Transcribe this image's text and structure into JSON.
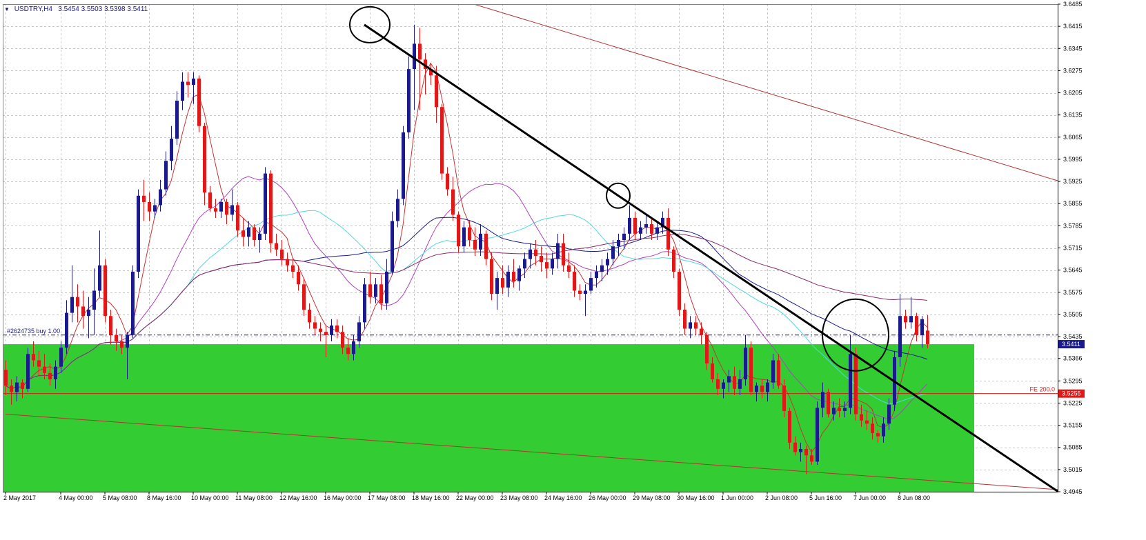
{
  "header": {
    "symbol": "USDTRY,H4",
    "ohlc": "3.5454 3.5503 3.5398 3.5411"
  },
  "colors": {
    "background": "#ffffff",
    "grid": "#c8c8c8",
    "bull_candle": "#1a1a8c",
    "bear_candle": "#e01818",
    "zone": "#33cc33",
    "trendline": "#000000",
    "ma_fast": "#c83232",
    "ma_mid": "#1a1a8c",
    "ma_cyan": "#4fd8e0",
    "ma_violet": "#b040c0",
    "ma_slow": "#8c2a6a",
    "channel": "#b43232",
    "price_label_bg": "#1a1a8c",
    "fe_label_bg": "#e01818"
  },
  "annotations": {
    "order_label": "#2624735 buy 1.00",
    "fe_label": "FE 200.0",
    "current_price": "3.5411",
    "fe_price": "3.5255"
  },
  "chart_data": {
    "type": "candlestick",
    "title": "USDTRY,H4",
    "xlabel": "",
    "ylabel": "",
    "ylim": [
      3.4945,
      3.6485
    ],
    "grid": true,
    "y_ticks": [
      "3.6485",
      "3.6415",
      "3.6345",
      "3.6275",
      "3.6205",
      "3.6135",
      "3.6065",
      "3.5995",
      "3.5925",
      "3.5855",
      "3.5785",
      "3.5715",
      "3.5645",
      "3.5575",
      "3.5505",
      "3.5435",
      "3.5366",
      "3.5295",
      "3.5225",
      "3.5155",
      "3.5085",
      "3.5015",
      "3.4945"
    ],
    "x_ticks": [
      {
        "label": "2 May 2017",
        "bar": 0
      },
      {
        "label": "4 May 00:00",
        "bar": 10
      },
      {
        "label": "5 May 08:00",
        "bar": 18
      },
      {
        "label": "8 May 16:00",
        "bar": 26
      },
      {
        "label": "10 May 00:00",
        "bar": 34
      },
      {
        "label": "11 May 08:00",
        "bar": 42
      },
      {
        "label": "12 May 16:00",
        "bar": 50
      },
      {
        "label": "16 May 00:00",
        "bar": 58
      },
      {
        "label": "17 May 08:00",
        "bar": 66
      },
      {
        "label": "18 May 16:00",
        "bar": 74
      },
      {
        "label": "22 May 00:00",
        "bar": 82
      },
      {
        "label": "23 May 08:00",
        "bar": 90
      },
      {
        "label": "24 May 16:00",
        "bar": 98
      },
      {
        "label": "26 May 00:00",
        "bar": 106
      },
      {
        "label": "29 May 08:00",
        "bar": 114
      },
      {
        "label": "30 May 16:00",
        "bar": 122
      },
      {
        "label": "1 Jun 00:00",
        "bar": 130
      },
      {
        "label": "2 Jun 08:00",
        "bar": 138
      },
      {
        "label": "5 Jun 16:00",
        "bar": 146
      },
      {
        "label": "7 Jun 00:00",
        "bar": 154
      },
      {
        "label": "8 Jun 08:00",
        "bar": 162
      }
    ],
    "candles": [
      [
        3.533,
        3.536,
        3.525,
        3.528
      ],
      [
        3.528,
        3.53,
        3.522,
        3.526
      ],
      [
        3.526,
        3.531,
        3.523,
        3.529
      ],
      [
        3.529,
        3.53,
        3.524,
        3.527
      ],
      [
        3.527,
        3.54,
        3.526,
        3.538
      ],
      [
        3.538,
        3.542,
        3.534,
        3.536
      ],
      [
        3.536,
        3.539,
        3.531,
        3.534
      ],
      [
        3.534,
        3.538,
        3.53,
        3.532
      ],
      [
        3.532,
        3.535,
        3.528,
        3.53
      ],
      [
        3.53,
        3.536,
        3.527,
        3.534
      ],
      [
        3.534,
        3.542,
        3.532,
        3.54
      ],
      [
        3.54,
        3.555,
        3.538,
        3.551
      ],
      [
        3.551,
        3.566,
        3.548,
        3.556
      ],
      [
        3.556,
        3.56,
        3.548,
        3.553
      ],
      [
        3.553,
        3.558,
        3.546,
        3.55
      ],
      [
        3.55,
        3.556,
        3.543,
        3.552
      ],
      [
        3.552,
        3.565,
        3.544,
        3.558
      ],
      [
        3.558,
        3.577,
        3.556,
        3.566
      ],
      [
        3.566,
        3.568,
        3.548,
        3.55
      ],
      [
        3.55,
        3.552,
        3.541,
        3.544
      ],
      [
        3.544,
        3.546,
        3.539,
        3.542
      ],
      [
        3.542,
        3.544,
        3.538,
        3.54
      ],
      [
        3.54,
        3.545,
        3.53,
        3.544
      ],
      [
        3.544,
        3.566,
        3.543,
        3.564
      ],
      [
        3.564,
        3.59,
        3.562,
        3.588
      ],
      [
        3.588,
        3.593,
        3.58,
        3.586
      ],
      [
        3.586,
        3.589,
        3.58,
        3.583
      ],
      [
        3.583,
        3.587,
        3.581,
        3.585
      ],
      [
        3.585,
        3.593,
        3.583,
        3.59
      ],
      [
        3.59,
        3.602,
        3.588,
        3.599
      ],
      [
        3.599,
        3.61,
        3.596,
        3.606
      ],
      [
        3.606,
        3.621,
        3.604,
        3.618
      ],
      [
        3.618,
        3.627,
        3.615,
        3.624
      ],
      [
        3.624,
        3.627,
        3.619,
        3.623
      ],
      [
        3.623,
        3.627,
        3.617,
        3.625
      ],
      [
        3.625,
        3.626,
        3.608,
        3.61
      ],
      [
        3.61,
        3.611,
        3.585,
        3.589
      ],
      [
        3.589,
        3.591,
        3.583,
        3.584
      ],
      [
        3.584,
        3.587,
        3.581,
        3.583
      ],
      [
        3.583,
        3.587,
        3.581,
        3.586
      ],
      [
        3.586,
        3.587,
        3.579,
        3.582
      ],
      [
        3.582,
        3.59,
        3.58,
        3.585
      ],
      [
        3.585,
        3.586,
        3.575,
        3.577
      ],
      [
        3.577,
        3.581,
        3.572,
        3.575
      ],
      [
        3.575,
        3.58,
        3.572,
        3.578
      ],
      [
        3.578,
        3.579,
        3.572,
        3.574
      ],
      [
        3.574,
        3.578,
        3.57,
        3.576
      ],
      [
        3.576,
        3.597,
        3.574,
        3.595
      ],
      [
        3.595,
        3.596,
        3.57,
        3.573
      ],
      [
        3.573,
        3.576,
        3.569,
        3.571
      ],
      [
        3.571,
        3.574,
        3.566,
        3.568
      ],
      [
        3.568,
        3.57,
        3.564,
        3.566
      ],
      [
        3.566,
        3.568,
        3.562,
        3.564
      ],
      [
        3.564,
        3.566,
        3.558,
        3.56
      ],
      [
        3.56,
        3.562,
        3.55,
        3.552
      ],
      [
        3.552,
        3.554,
        3.546,
        3.548
      ],
      [
        3.548,
        3.55,
        3.544,
        3.546
      ],
      [
        3.546,
        3.548,
        3.542,
        3.545
      ],
      [
        3.545,
        3.547,
        3.537,
        3.544
      ],
      [
        3.544,
        3.549,
        3.542,
        3.547
      ],
      [
        3.547,
        3.549,
        3.543,
        3.545
      ],
      [
        3.545,
        3.547,
        3.538,
        3.54
      ],
      [
        3.54,
        3.543,
        3.536,
        3.538
      ],
      [
        3.538,
        3.544,
        3.536,
        3.542
      ],
      [
        3.542,
        3.55,
        3.54,
        3.548
      ],
      [
        3.548,
        3.562,
        3.546,
        3.56
      ],
      [
        3.56,
        3.564,
        3.554,
        3.556
      ],
      [
        3.556,
        3.562,
        3.554,
        3.56
      ],
      [
        3.56,
        3.563,
        3.552,
        3.554
      ],
      [
        3.554,
        3.568,
        3.552,
        3.564
      ],
      [
        3.564,
        3.583,
        3.563,
        3.58
      ],
      [
        3.58,
        3.59,
        3.578,
        3.587
      ],
      [
        3.587,
        3.61,
        3.585,
        3.608
      ],
      [
        3.608,
        3.632,
        3.606,
        3.628
      ],
      [
        3.628,
        3.642,
        3.615,
        3.636
      ],
      [
        3.636,
        3.641,
        3.615,
        3.631
      ],
      [
        3.631,
        3.633,
        3.62,
        3.628
      ],
      [
        3.628,
        3.63,
        3.623,
        3.626
      ],
      [
        3.626,
        3.629,
        3.611,
        3.616
      ],
      [
        3.616,
        3.617,
        3.593,
        3.595
      ],
      [
        3.595,
        3.597,
        3.588,
        3.59
      ],
      [
        3.59,
        3.594,
        3.58,
        3.582
      ],
      [
        3.582,
        3.583,
        3.57,
        3.572
      ],
      [
        3.572,
        3.58,
        3.57,
        3.578
      ],
      [
        3.578,
        3.58,
        3.572,
        3.574
      ],
      [
        3.574,
        3.578,
        3.569,
        3.571
      ],
      [
        3.571,
        3.579,
        3.569,
        3.576
      ],
      [
        3.576,
        3.577,
        3.566,
        3.568
      ],
      [
        3.568,
        3.57,
        3.555,
        3.557
      ],
      [
        3.557,
        3.564,
        3.552,
        3.562
      ],
      [
        3.562,
        3.566,
        3.557,
        3.559
      ],
      [
        3.559,
        3.566,
        3.556,
        3.564
      ],
      [
        3.564,
        3.568,
        3.559,
        3.561
      ],
      [
        3.561,
        3.566,
        3.558,
        3.565
      ],
      [
        3.565,
        3.57,
        3.562,
        3.568
      ],
      [
        3.568,
        3.573,
        3.565,
        3.571
      ],
      [
        3.571,
        3.574,
        3.566,
        3.569
      ],
      [
        3.569,
        3.572,
        3.564,
        3.567
      ],
      [
        3.567,
        3.57,
        3.562,
        3.565
      ],
      [
        3.565,
        3.57,
        3.563,
        3.568
      ],
      [
        3.568,
        3.576,
        3.565,
        3.573
      ],
      [
        3.573,
        3.576,
        3.564,
        3.566
      ],
      [
        3.566,
        3.57,
        3.562,
        3.564
      ],
      [
        3.564,
        3.566,
        3.556,
        3.558
      ],
      [
        3.558,
        3.56,
        3.555,
        3.557
      ],
      [
        3.557,
        3.56,
        3.55,
        3.558
      ],
      [
        3.558,
        3.564,
        3.557,
        3.562
      ],
      [
        3.562,
        3.566,
        3.559,
        3.564
      ],
      [
        3.564,
        3.568,
        3.561,
        3.566
      ],
      [
        3.566,
        3.57,
        3.563,
        3.568
      ],
      [
        3.568,
        3.574,
        3.566,
        3.572
      ],
      [
        3.572,
        3.576,
        3.569,
        3.574
      ],
      [
        3.574,
        3.578,
        3.571,
        3.576
      ],
      [
        3.576,
        3.585,
        3.574,
        3.581
      ],
      [
        3.581,
        3.583,
        3.574,
        3.576
      ],
      [
        3.576,
        3.58,
        3.574,
        3.578
      ],
      [
        3.578,
        3.582,
        3.576,
        3.579
      ],
      [
        3.579,
        3.581,
        3.574,
        3.576
      ],
      [
        3.576,
        3.58,
        3.574,
        3.578
      ],
      [
        3.578,
        3.583,
        3.576,
        3.581
      ],
      [
        3.581,
        3.584,
        3.569,
        3.571
      ],
      [
        3.571,
        3.572,
        3.562,
        3.564
      ],
      [
        3.564,
        3.565,
        3.55,
        3.552
      ],
      [
        3.552,
        3.554,
        3.544,
        3.546
      ],
      [
        3.546,
        3.55,
        3.543,
        3.548
      ],
      [
        3.548,
        3.55,
        3.544,
        3.546
      ],
      [
        3.546,
        3.548,
        3.541,
        3.544
      ],
      [
        3.544,
        3.545,
        3.533,
        3.535
      ],
      [
        3.535,
        3.537,
        3.529,
        3.53
      ],
      [
        3.53,
        3.532,
        3.525,
        3.527
      ],
      [
        3.527,
        3.53,
        3.524,
        3.529
      ],
      [
        3.529,
        3.533,
        3.526,
        3.531
      ],
      [
        3.531,
        3.534,
        3.525,
        3.527
      ],
      [
        3.527,
        3.533,
        3.525,
        3.53
      ],
      [
        3.53,
        3.544,
        3.528,
        3.54
      ],
      [
        3.54,
        3.542,
        3.525,
        3.526
      ],
      [
        3.526,
        3.529,
        3.523,
        3.528
      ],
      [
        3.528,
        3.53,
        3.524,
        3.526
      ],
      [
        3.526,
        3.53,
        3.523,
        3.529
      ],
      [
        3.529,
        3.538,
        3.527,
        3.536
      ],
      [
        3.536,
        3.538,
        3.527,
        3.528
      ],
      [
        3.528,
        3.53,
        3.518,
        3.52
      ],
      [
        3.52,
        3.521,
        3.508,
        3.51
      ],
      [
        3.51,
        3.512,
        3.506,
        3.507
      ],
      [
        3.507,
        3.51,
        3.504,
        3.508
      ],
      [
        3.508,
        3.509,
        3.5,
        3.506
      ],
      [
        3.506,
        3.508,
        3.503,
        3.504
      ],
      [
        3.504,
        3.523,
        3.503,
        3.521
      ],
      [
        3.521,
        3.529,
        3.518,
        3.526
      ],
      [
        3.526,
        3.527,
        3.518,
        3.519
      ],
      [
        3.519,
        3.523,
        3.517,
        3.521
      ],
      [
        3.521,
        3.524,
        3.518,
        3.52
      ],
      [
        3.52,
        3.523,
        3.518,
        3.521
      ],
      [
        3.521,
        3.544,
        3.519,
        3.538
      ],
      [
        3.538,
        3.54,
        3.517,
        3.519
      ],
      [
        3.519,
        3.522,
        3.515,
        3.517
      ],
      [
        3.517,
        3.52,
        3.514,
        3.516
      ],
      [
        3.516,
        3.518,
        3.511,
        3.513
      ],
      [
        3.513,
        3.514,
        3.51,
        3.512
      ],
      [
        3.512,
        3.518,
        3.51,
        3.516
      ],
      [
        3.516,
        3.524,
        3.514,
        3.522
      ],
      [
        3.522,
        3.539,
        3.52,
        3.537
      ],
      [
        3.537,
        3.557,
        3.534,
        3.55
      ],
      [
        3.55,
        3.552,
        3.546,
        3.548
      ],
      [
        3.548,
        3.556,
        3.546,
        3.55
      ],
      [
        3.55,
        3.551,
        3.542,
        3.544
      ],
      [
        3.544,
        3.55,
        3.54,
        3.549
      ],
      [
        3.5454,
        3.5503,
        3.5398,
        3.5411
      ]
    ],
    "candle_fields": [
      "open",
      "high",
      "low",
      "close"
    ],
    "lines": [
      {
        "kind": "trendline",
        "from": [
          65,
          3.642
        ],
        "to": [
          192,
          3.493
        ]
      },
      {
        "kind": "channel-upper",
        "from": [
          82,
          3.65
        ],
        "to": [
          192,
          3.592
        ]
      },
      {
        "kind": "channel-lower",
        "from": [
          0,
          3.519
        ],
        "to": [
          192,
          3.495
        ]
      },
      {
        "kind": "horizontal",
        "price": 3.544
      },
      {
        "kind": "horizontal",
        "price": 3.5255
      }
    ],
    "zone": {
      "from_bar": 0,
      "to_bar": 175,
      "top": 3.5411,
      "bottom": 3.4945
    },
    "circles": [
      {
        "bar": 66,
        "price": 3.642
      },
      {
        "bar": 111,
        "price": 3.588
      },
      {
        "bar": 154,
        "price": 3.544
      }
    ]
  }
}
